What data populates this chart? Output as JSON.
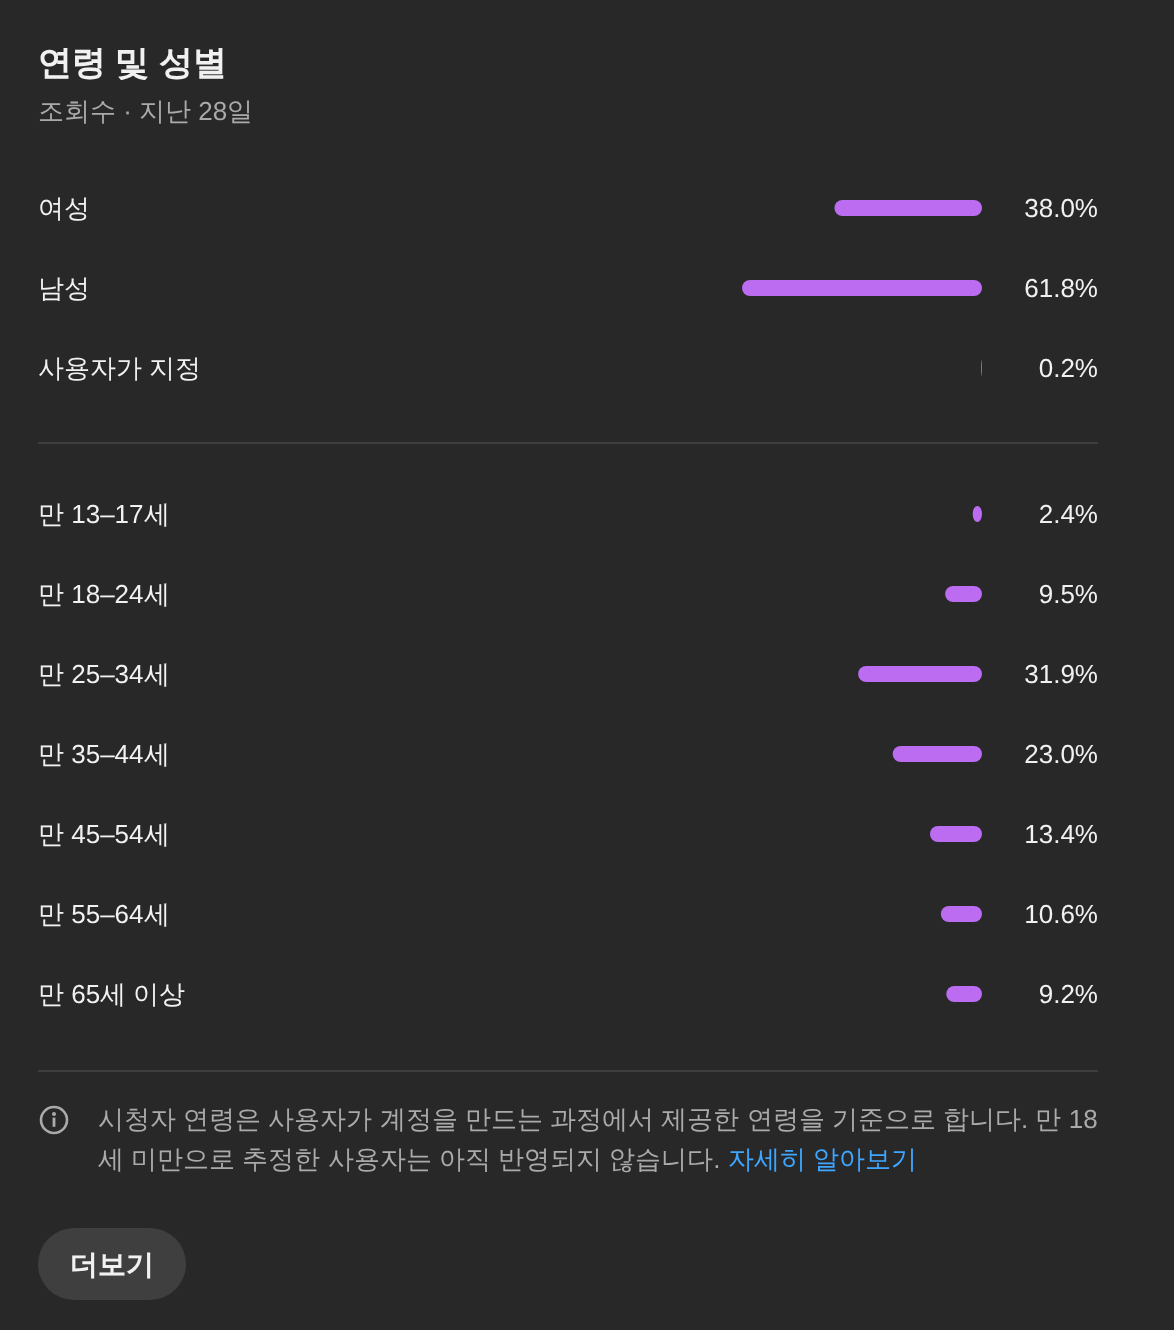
{
  "chart_data": [
    {
      "type": "bar",
      "title": "연령 및 성별",
      "subtitle": "조회수 · 지난 28일",
      "orientation": "horizontal",
      "categories": [
        "여성",
        "남성",
        "사용자가 지정"
      ],
      "values": [
        38.0,
        61.8,
        0.2
      ],
      "color": "#bb6cf1",
      "value_labels": [
        "38.0%",
        "61.8%",
        "0.2%"
      ]
    },
    {
      "type": "bar",
      "orientation": "horizontal",
      "categories": [
        "만 13–17세",
        "만 18–24세",
        "만 25–34세",
        "만 35–44세",
        "만 45–54세",
        "만 55–64세",
        "만 65세 이상"
      ],
      "values": [
        2.4,
        9.5,
        31.9,
        23.0,
        13.4,
        10.6,
        9.2
      ],
      "color": "#bb6cf1",
      "value_labels": [
        "2.4%",
        "9.5%",
        "31.9%",
        "23.0%",
        "13.4%",
        "10.6%",
        "9.2%"
      ],
      "annotations": [
        "시청자 연령은 사용자가 계정을 만드는 과정에서 제공한 연령을 기준으로 합니다. 만 18세 미만으로 추정한 사용자는 아직 반영되지 않습니다.",
        "자세히 알아보기",
        "더보기"
      ]
    }
  ]
}
